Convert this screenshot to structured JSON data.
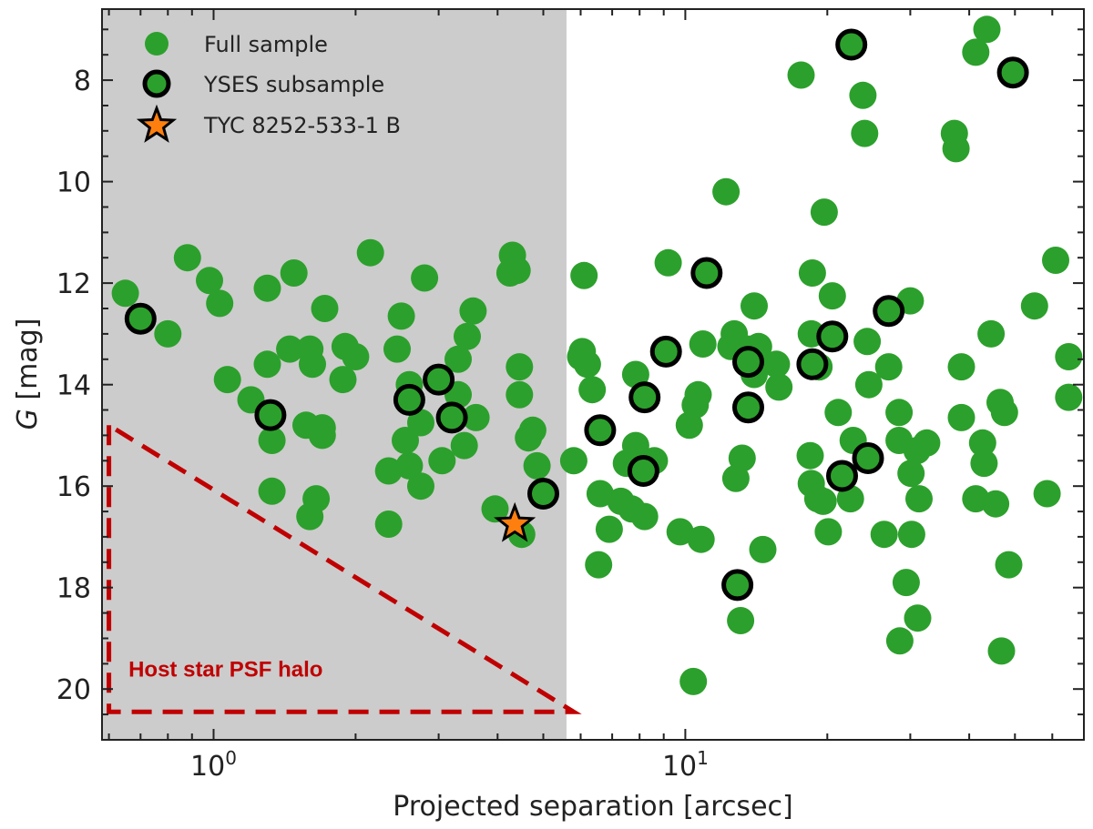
{
  "chart_data": {
    "type": "scatter",
    "title": "",
    "xlabel": "Projected separation [arcsec]",
    "ylabel_italic": "G",
    "ylabel_rest": " [mag]",
    "xscale": "log",
    "xlim": [
      0.58,
      70
    ],
    "ylim": [
      21.0,
      6.6
    ],
    "y_inverted": true,
    "xticks": [
      {
        "value": 1,
        "base": "10",
        "exp": "0"
      },
      {
        "value": 10,
        "base": "10",
        "exp": "1"
      }
    ],
    "yticks": [
      8,
      10,
      12,
      14,
      16,
      18,
      20
    ],
    "shaded_region": {
      "x_from": 0.58,
      "x_to": 5.6,
      "color": "#cccccc"
    },
    "annotation": {
      "text": "Host star PSF halo",
      "color": "#c00000",
      "triangle_data": [
        [
          0.6,
          14.8
        ],
        [
          0.6,
          20.45
        ],
        [
          5.8,
          20.45
        ]
      ],
      "text_at": [
        0.66,
        19.75
      ]
    },
    "colors": {
      "full": "#2ca02c",
      "ring": "#000000",
      "star": "#ff7f0e"
    },
    "legend": {
      "position": "top-left",
      "items": [
        {
          "label": "Full sample",
          "marker": "circle"
        },
        {
          "label": "YSES subsample",
          "marker": "ringed-circle"
        },
        {
          "label": "TYC 8252-533-1 B",
          "marker": "star"
        }
      ]
    },
    "series": [
      {
        "name": "Full sample",
        "points": [
          [
            0.65,
            12.2
          ],
          [
            0.7,
            12.7
          ],
          [
            0.8,
            13.0
          ],
          [
            0.88,
            11.5
          ],
          [
            0.98,
            11.95
          ],
          [
            1.03,
            12.4
          ],
          [
            1.07,
            13.9
          ],
          [
            1.2,
            14.3
          ],
          [
            1.3,
            13.6
          ],
          [
            1.3,
            12.1
          ],
          [
            1.32,
            14.6
          ],
          [
            1.33,
            15.1
          ],
          [
            1.33,
            16.1
          ],
          [
            1.45,
            13.3
          ],
          [
            1.48,
            11.8
          ],
          [
            1.57,
            14.8
          ],
          [
            1.6,
            13.3
          ],
          [
            1.6,
            16.6
          ],
          [
            1.62,
            13.6
          ],
          [
            1.65,
            16.25
          ],
          [
            1.7,
            14.85
          ],
          [
            1.7,
            15.0
          ],
          [
            1.72,
            12.5
          ],
          [
            1.88,
            13.9
          ],
          [
            1.9,
            13.25
          ],
          [
            2.0,
            13.45
          ],
          [
            2.15,
            11.4
          ],
          [
            2.35,
            16.75
          ],
          [
            2.35,
            15.7
          ],
          [
            2.45,
            13.3
          ],
          [
            2.5,
            12.65
          ],
          [
            2.55,
            15.1
          ],
          [
            2.6,
            14.0
          ],
          [
            2.6,
            14.3
          ],
          [
            2.6,
            15.6
          ],
          [
            2.75,
            16.0
          ],
          [
            2.75,
            14.75
          ],
          [
            2.8,
            11.9
          ],
          [
            3.0,
            13.9
          ],
          [
            3.05,
            15.5
          ],
          [
            3.2,
            14.65
          ],
          [
            3.3,
            14.2
          ],
          [
            3.3,
            13.5
          ],
          [
            3.4,
            15.2
          ],
          [
            3.45,
            13.05
          ],
          [
            3.55,
            12.55
          ],
          [
            3.6,
            14.65
          ],
          [
            3.95,
            16.45
          ],
          [
            4.3,
            11.45
          ],
          [
            4.25,
            11.8
          ],
          [
            4.4,
            11.75
          ],
          [
            4.45,
            13.65
          ],
          [
            4.45,
            14.2
          ],
          [
            4.5,
            16.95
          ],
          [
            4.65,
            15.05
          ],
          [
            4.75,
            14.9
          ],
          [
            4.85,
            15.6
          ],
          [
            5.0,
            16.15
          ],
          [
            5.8,
            15.5
          ],
          [
            6.0,
            13.45
          ],
          [
            6.1,
            11.85
          ],
          [
            6.05,
            13.35
          ],
          [
            6.2,
            13.6
          ],
          [
            6.35,
            14.1
          ],
          [
            6.55,
            17.55
          ],
          [
            6.6,
            16.15
          ],
          [
            6.6,
            14.9
          ],
          [
            6.9,
            16.85
          ],
          [
            7.3,
            16.3
          ],
          [
            7.5,
            15.55
          ],
          [
            7.7,
            16.45
          ],
          [
            7.85,
            15.2
          ],
          [
            7.85,
            13.8
          ],
          [
            8.15,
            15.7
          ],
          [
            8.2,
            14.25
          ],
          [
            8.2,
            16.6
          ],
          [
            8.6,
            15.5
          ],
          [
            9.1,
            13.35
          ],
          [
            9.2,
            11.6
          ],
          [
            9.75,
            16.9
          ],
          [
            10.2,
            14.8
          ],
          [
            10.5,
            14.4
          ],
          [
            10.4,
            19.85
          ],
          [
            10.65,
            14.2
          ],
          [
            10.8,
            17.05
          ],
          [
            10.9,
            13.2
          ],
          [
            11.1,
            11.8
          ],
          [
            12.2,
            10.2
          ],
          [
            12.5,
            13.25
          ],
          [
            12.7,
            13.0
          ],
          [
            12.8,
            15.85
          ],
          [
            12.9,
            17.95
          ],
          [
            13.1,
            18.65
          ],
          [
            13.2,
            15.45
          ],
          [
            13.6,
            13.3
          ],
          [
            13.6,
            13.55
          ],
          [
            13.6,
            14.45
          ],
          [
            14.0,
            12.45
          ],
          [
            14.0,
            13.8
          ],
          [
            14.3,
            13.25
          ],
          [
            14.6,
            17.25
          ],
          [
            15.6,
            13.6
          ],
          [
            15.8,
            14.05
          ],
          [
            17.6,
            7.9
          ],
          [
            18.6,
            11.8
          ],
          [
            18.5,
            13.0
          ],
          [
            18.4,
            15.4
          ],
          [
            18.5,
            15.95
          ],
          [
            19.1,
            16.25
          ],
          [
            19.2,
            13.65
          ],
          [
            19.2,
            13.65
          ],
          [
            19.6,
            16.3
          ],
          [
            19.7,
            10.6
          ],
          [
            20.1,
            16.9
          ],
          [
            20.5,
            13.05
          ],
          [
            20.5,
            12.25
          ],
          [
            21.1,
            14.55
          ],
          [
            21.5,
            15.8
          ],
          [
            22.5,
            7.3
          ],
          [
            22.4,
            16.25
          ],
          [
            22.7,
            15.1
          ],
          [
            23.8,
            8.3
          ],
          [
            24.0,
            9.05
          ],
          [
            24.3,
            13.15
          ],
          [
            24.5,
            14.0
          ],
          [
            24.4,
            15.45
          ],
          [
            26.4,
            16.95
          ],
          [
            27.0,
            12.55
          ],
          [
            27.0,
            13.65
          ],
          [
            28.4,
            14.55
          ],
          [
            28.4,
            15.1
          ],
          [
            28.5,
            19.05
          ],
          [
            29.4,
            17.9
          ],
          [
            30.0,
            12.35
          ],
          [
            30.1,
            15.75
          ],
          [
            30.2,
            16.95
          ],
          [
            31.0,
            15.3
          ],
          [
            31.1,
            18.6
          ],
          [
            31.3,
            16.25
          ],
          [
            32.5,
            15.15
          ],
          [
            37.2,
            9.05
          ],
          [
            37.5,
            9.35
          ],
          [
            38.5,
            14.65
          ],
          [
            38.5,
            13.65
          ],
          [
            41.3,
            7.45
          ],
          [
            41.3,
            16.25
          ],
          [
            42.7,
            15.15
          ],
          [
            43.0,
            15.55
          ],
          [
            43.6,
            7.0
          ],
          [
            44.5,
            13.0
          ],
          [
            45.5,
            16.35
          ],
          [
            46.5,
            14.35
          ],
          [
            46.8,
            19.25
          ],
          [
            47.5,
            14.55
          ],
          [
            48.5,
            17.55
          ],
          [
            49.5,
            7.85
          ],
          [
            55.0,
            12.45
          ],
          [
            58.5,
            16.15
          ],
          [
            61.0,
            11.55
          ],
          [
            65.0,
            13.45
          ],
          [
            65.0,
            14.25
          ]
        ]
      },
      {
        "name": "YSES subsample",
        "points": [
          [
            0.7,
            12.7
          ],
          [
            1.32,
            14.6
          ],
          [
            2.6,
            14.3
          ],
          [
            3.0,
            13.9
          ],
          [
            3.2,
            14.65
          ],
          [
            5.0,
            16.15
          ],
          [
            6.6,
            14.9
          ],
          [
            8.2,
            14.25
          ],
          [
            8.15,
            15.7
          ],
          [
            9.1,
            13.35
          ],
          [
            11.1,
            11.8
          ],
          [
            12.9,
            17.95
          ],
          [
            13.6,
            13.55
          ],
          [
            13.6,
            14.45
          ],
          [
            18.6,
            13.6
          ],
          [
            20.5,
            13.05
          ],
          [
            21.5,
            15.8
          ],
          [
            22.5,
            7.3
          ],
          [
            24.4,
            15.45
          ],
          [
            27.0,
            12.55
          ],
          [
            49.5,
            7.85
          ]
        ]
      },
      {
        "name": "TYC 8252-533-1 B",
        "points": [
          [
            4.35,
            16.75
          ]
        ]
      }
    ]
  }
}
